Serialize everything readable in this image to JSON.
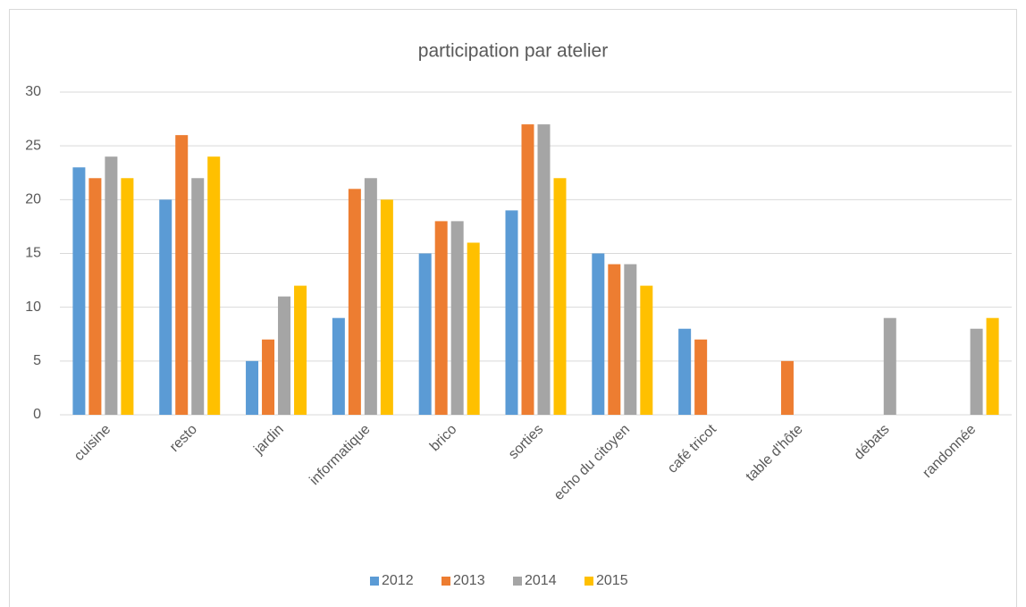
{
  "chart_data": {
    "type": "bar",
    "title": "participation par atelier",
    "categories": [
      "cuisine",
      "resto",
      "jardin",
      "informatique",
      "brico",
      "sorties",
      "echo du citoyen",
      "café tricot",
      "table d'hôte",
      "débats",
      "randonnée"
    ],
    "series": [
      {
        "name": "2012",
        "color": "#5b9bd5",
        "values": [
          23,
          20,
          5,
          9,
          15,
          19,
          15,
          8,
          null,
          null,
          null
        ]
      },
      {
        "name": "2013",
        "color": "#ed7d31",
        "values": [
          22,
          26,
          7,
          21,
          18,
          27,
          14,
          7,
          5,
          null,
          null
        ]
      },
      {
        "name": "2014",
        "color": "#a5a5a5",
        "values": [
          24,
          22,
          11,
          22,
          18,
          27,
          14,
          null,
          null,
          9,
          8
        ]
      },
      {
        "name": "2015",
        "color": "#ffc000",
        "values": [
          22,
          24,
          12,
          20,
          16,
          22,
          12,
          null,
          null,
          null,
          9
        ]
      }
    ],
    "ylim": [
      0,
      30
    ],
    "yticks": [
      0,
      5,
      10,
      15,
      20,
      25,
      30
    ],
    "grid": true,
    "legend": "bottom"
  }
}
